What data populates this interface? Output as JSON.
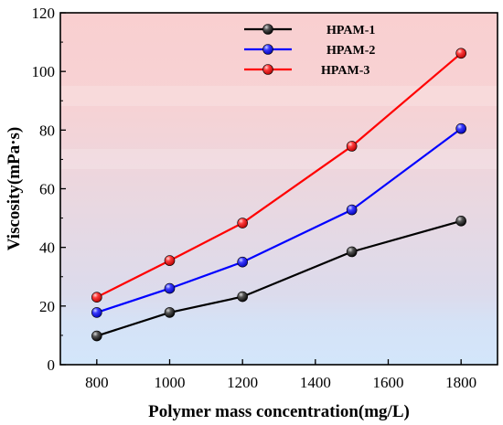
{
  "chart_data": {
    "type": "line",
    "xlabel": "Polymer mass concentration(mg/L)",
    "ylabel": "Viscosity(mPa·s)",
    "xlim": [
      700,
      1900
    ],
    "ylim": [
      0,
      120
    ],
    "xticks": [
      800,
      1000,
      1200,
      1400,
      1600,
      1800
    ],
    "yticks": [
      0,
      20,
      40,
      60,
      80,
      100,
      120
    ],
    "legend_position": "top-left",
    "grid": false,
    "background": "vertical gradient from light blue (bottom) to light red (top)",
    "series": [
      {
        "name": "HPAM-1",
        "color": "#000000",
        "x": [
          800,
          1000,
          1200,
          1500,
          1800
        ],
        "values": [
          9.8,
          17.8,
          23.2,
          38.5,
          49.0
        ]
      },
      {
        "name": "HPAM-2",
        "color": "#0000ff",
        "x": [
          800,
          1000,
          1200,
          1500,
          1800
        ],
        "values": [
          17.8,
          26.0,
          35.0,
          52.8,
          80.5
        ]
      },
      {
        "name": "HPAM-3",
        "color": "#ff0000",
        "x": [
          800,
          1000,
          1200,
          1500,
          1800
        ],
        "values": [
          23.0,
          35.5,
          48.3,
          74.5,
          106.2
        ]
      }
    ]
  }
}
